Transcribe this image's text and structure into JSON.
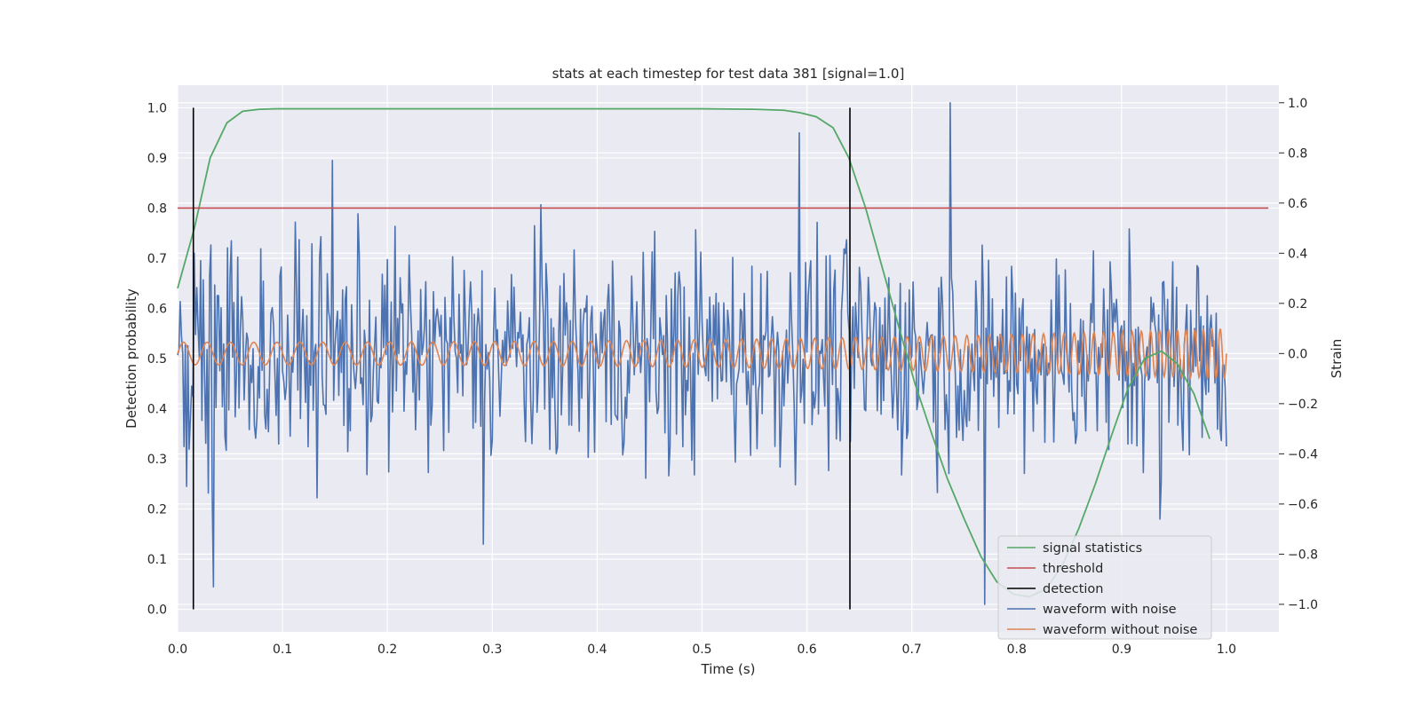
{
  "chart_data": {
    "type": "line",
    "title": "stats at each timestep for test data 381 [signal=1.0]",
    "xlabel": "Time (s)",
    "ylabel": "Detection probability",
    "y2label": "Strain",
    "xlim": [
      0.0,
      1.05
    ],
    "ylim": [
      -0.045,
      1.045
    ],
    "y2lim": [
      -1.11,
      1.07
    ],
    "xticks": [
      "0.0",
      "0.1",
      "0.2",
      "0.3",
      "0.4",
      "0.5",
      "0.6",
      "0.7",
      "0.8",
      "0.9",
      "1.0"
    ],
    "yticks": [
      "0.0",
      "0.1",
      "0.2",
      "0.3",
      "0.4",
      "0.5",
      "0.6",
      "0.7",
      "0.8",
      "0.9",
      "1.0"
    ],
    "y2ticks": [
      "−1.0",
      "−0.8",
      "−0.6",
      "−0.4",
      "−0.2",
      "0.0",
      "0.2",
      "0.4",
      "0.6",
      "0.8",
      "1.0"
    ],
    "grid": true,
    "legend_position": "lower-right",
    "colors": {
      "background": "#eaeaf2",
      "grid": "#ffffff",
      "signal": "#55a868",
      "threshold": "#c44e52",
      "detection": "#000000",
      "noisy": "#4c72b0",
      "clean": "#dd8452"
    },
    "series": [
      {
        "name": "signal statistics",
        "axis": "left",
        "x": [
          0.0,
          0.016,
          0.031,
          0.047,
          0.062,
          0.078,
          0.094,
          0.109,
          0.125,
          0.2,
          0.3,
          0.4,
          0.5,
          0.55,
          0.578,
          0.594,
          0.609,
          0.625,
          0.64,
          0.656,
          0.672,
          0.688,
          0.703,
          0.719,
          0.734,
          0.75,
          0.766,
          0.781,
          0.797,
          0.812,
          0.828,
          0.844,
          0.859,
          0.875,
          0.891,
          0.906,
          0.922,
          0.938,
          0.953,
          0.969,
          0.984
        ],
        "y": [
          0.64,
          0.76,
          0.9,
          0.97,
          0.993,
          0.997,
          0.998,
          0.998,
          0.998,
          0.998,
          0.998,
          0.998,
          0.998,
          0.997,
          0.995,
          0.99,
          0.982,
          0.96,
          0.9,
          0.8,
          0.68,
          0.56,
          0.45,
          0.35,
          0.26,
          0.18,
          0.105,
          0.055,
          0.03,
          0.025,
          0.04,
          0.09,
          0.16,
          0.25,
          0.35,
          0.44,
          0.5,
          0.515,
          0.49,
          0.43,
          0.34
        ]
      },
      {
        "name": "threshold",
        "axis": "left",
        "x": [
          0.0,
          1.04
        ],
        "y": [
          0.8,
          0.8
        ]
      },
      {
        "name": "detection",
        "axis": "left",
        "segments": [
          {
            "x": 0.015,
            "y": [
              0.0,
              1.0
            ]
          },
          {
            "x": 0.641,
            "y": [
              0.0,
              1.0
            ]
          }
        ]
      },
      {
        "name": "waveform with noise",
        "axis": "right",
        "x_range": [
          0.0,
          1.0
        ],
        "y_range": [
          -1.0,
          1.0
        ],
        "samples": 820,
        "notable_peaks": [
          {
            "x": 0.016,
            "y": 0.4
          },
          {
            "x": 0.034,
            "y": -0.93
          },
          {
            "x": 0.148,
            "y": 0.77
          },
          {
            "x": 0.292,
            "y": -0.76
          },
          {
            "x": 0.593,
            "y": 0.88
          },
          {
            "x": 0.736,
            "y": 1.0
          },
          {
            "x": 0.77,
            "y": -1.0
          },
          {
            "x": 0.937,
            "y": -0.66
          }
        ]
      },
      {
        "name": "waveform without noise",
        "axis": "right",
        "x_range": [
          0.0,
          1.0
        ],
        "amplitude_start": 0.045,
        "amplitude_end": 0.1,
        "cycles": 72
      }
    ]
  }
}
